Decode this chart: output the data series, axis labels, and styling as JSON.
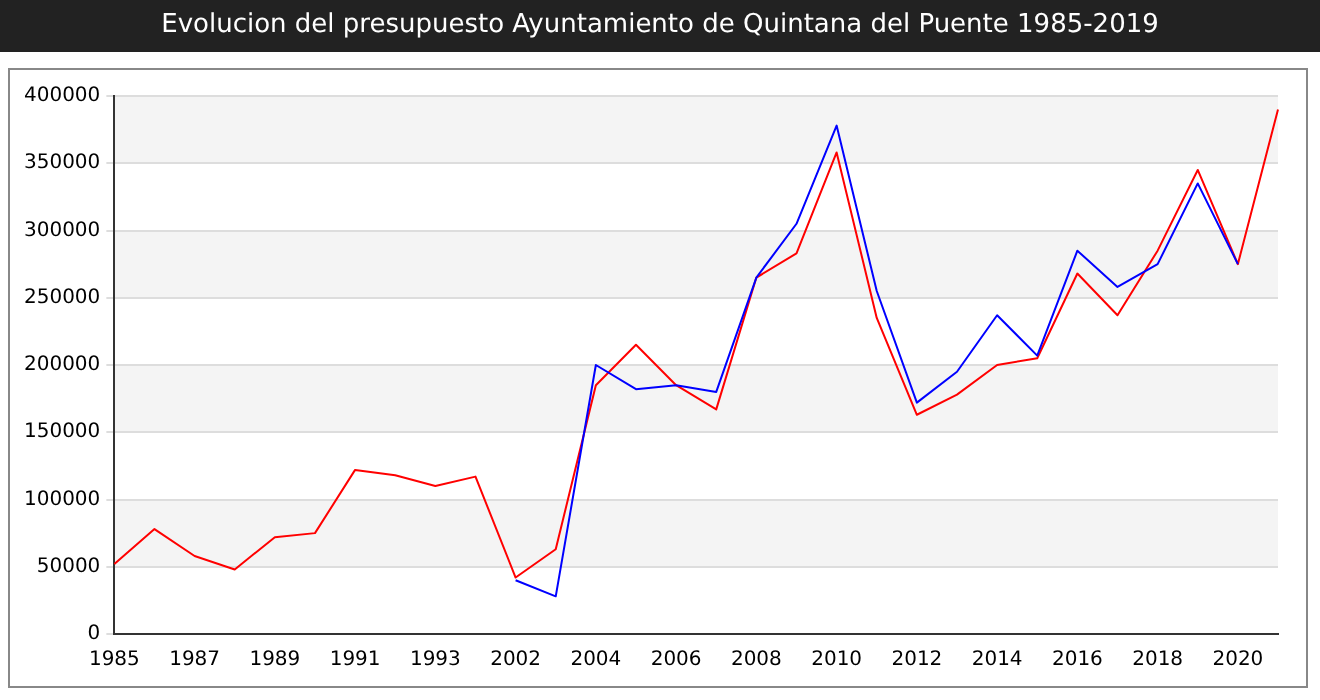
{
  "chart_data": {
    "type": "line",
    "title": "Evolucion del presupuesto Ayuntamiento de Quintana del Puente 1985-2019",
    "categories": [
      "1985",
      null,
      "1987",
      null,
      "1989",
      null,
      "1991",
      null,
      "1993",
      null,
      "2002",
      null,
      "2004",
      null,
      "2006",
      null,
      "2008",
      null,
      "2010",
      null,
      "2012",
      null,
      "2014",
      null,
      "2016",
      null,
      "2018",
      null,
      "2020",
      null
    ],
    "series": [
      {
        "color": "#0000ff",
        "values": [
          null,
          null,
          null,
          null,
          null,
          null,
          null,
          null,
          null,
          null,
          40000,
          28000,
          200000,
          182000,
          185000,
          180000,
          265000,
          305000,
          378000,
          255000,
          172000,
          195000,
          237000,
          207000,
          285000,
          258000,
          275000,
          335000,
          275000,
          null
        ]
      },
      {
        "color": "#ff0000",
        "values": [
          52000,
          78000,
          58000,
          48000,
          72000,
          75000,
          122000,
          118000,
          110000,
          117000,
          42000,
          63000,
          185000,
          215000,
          185000,
          167000,
          265000,
          283000,
          358000,
          235000,
          163000,
          178000,
          200000,
          205000,
          268000,
          237000,
          285000,
          345000,
          275000,
          390000
        ]
      }
    ],
    "ylim": [
      0,
      400000
    ],
    "yticks": [
      0,
      50000,
      100000,
      150000,
      200000,
      250000,
      300000,
      350000,
      400000
    ],
    "grid": "y",
    "marker": "none"
  }
}
